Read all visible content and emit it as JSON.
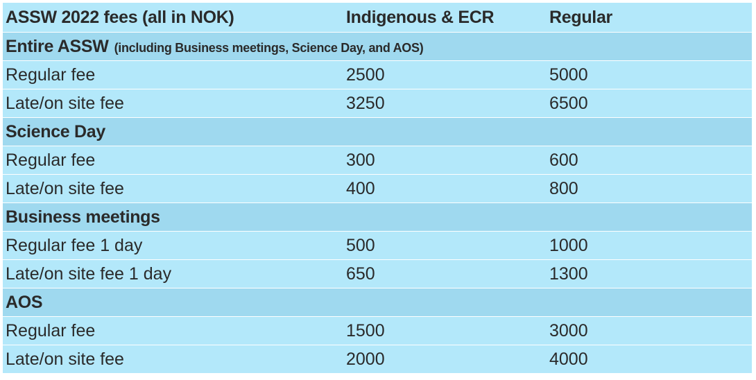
{
  "table": {
    "header": {
      "col1": "ASSW 2022 fees (all in NOK)",
      "col2": "Indigenous & ECR",
      "col3": "Regular"
    },
    "sections": [
      {
        "title": "Entire ASSW",
        "note": "(including Business meetings, Science Day, and AOS)",
        "rows": [
          {
            "label": "Regular fee",
            "indigenous_ecr": "2500",
            "regular": "5000"
          },
          {
            "label": "Late/on site fee",
            "indigenous_ecr": "3250",
            "regular": "6500"
          }
        ]
      },
      {
        "title": "Science Day",
        "note": "",
        "rows": [
          {
            "label": "Regular fee",
            "indigenous_ecr": "300",
            "regular": "600"
          },
          {
            "label": "Late/on site fee",
            "indigenous_ecr": "400",
            "regular": "800"
          }
        ]
      },
      {
        "title": "Business meetings",
        "note": "",
        "rows": [
          {
            "label": "Regular fee 1 day",
            "indigenous_ecr": "500",
            "regular": "1000"
          },
          {
            "label": "Late/on site fee 1 day",
            "indigenous_ecr": "650",
            "regular": "1300"
          }
        ]
      },
      {
        "title": "AOS",
        "note": "",
        "rows": [
          {
            "label": "Regular fee",
            "indigenous_ecr": "1500",
            "regular": "3000"
          },
          {
            "label": "Late/on site fee",
            "indigenous_ecr": "2000",
            "regular": "4000"
          }
        ]
      }
    ]
  }
}
